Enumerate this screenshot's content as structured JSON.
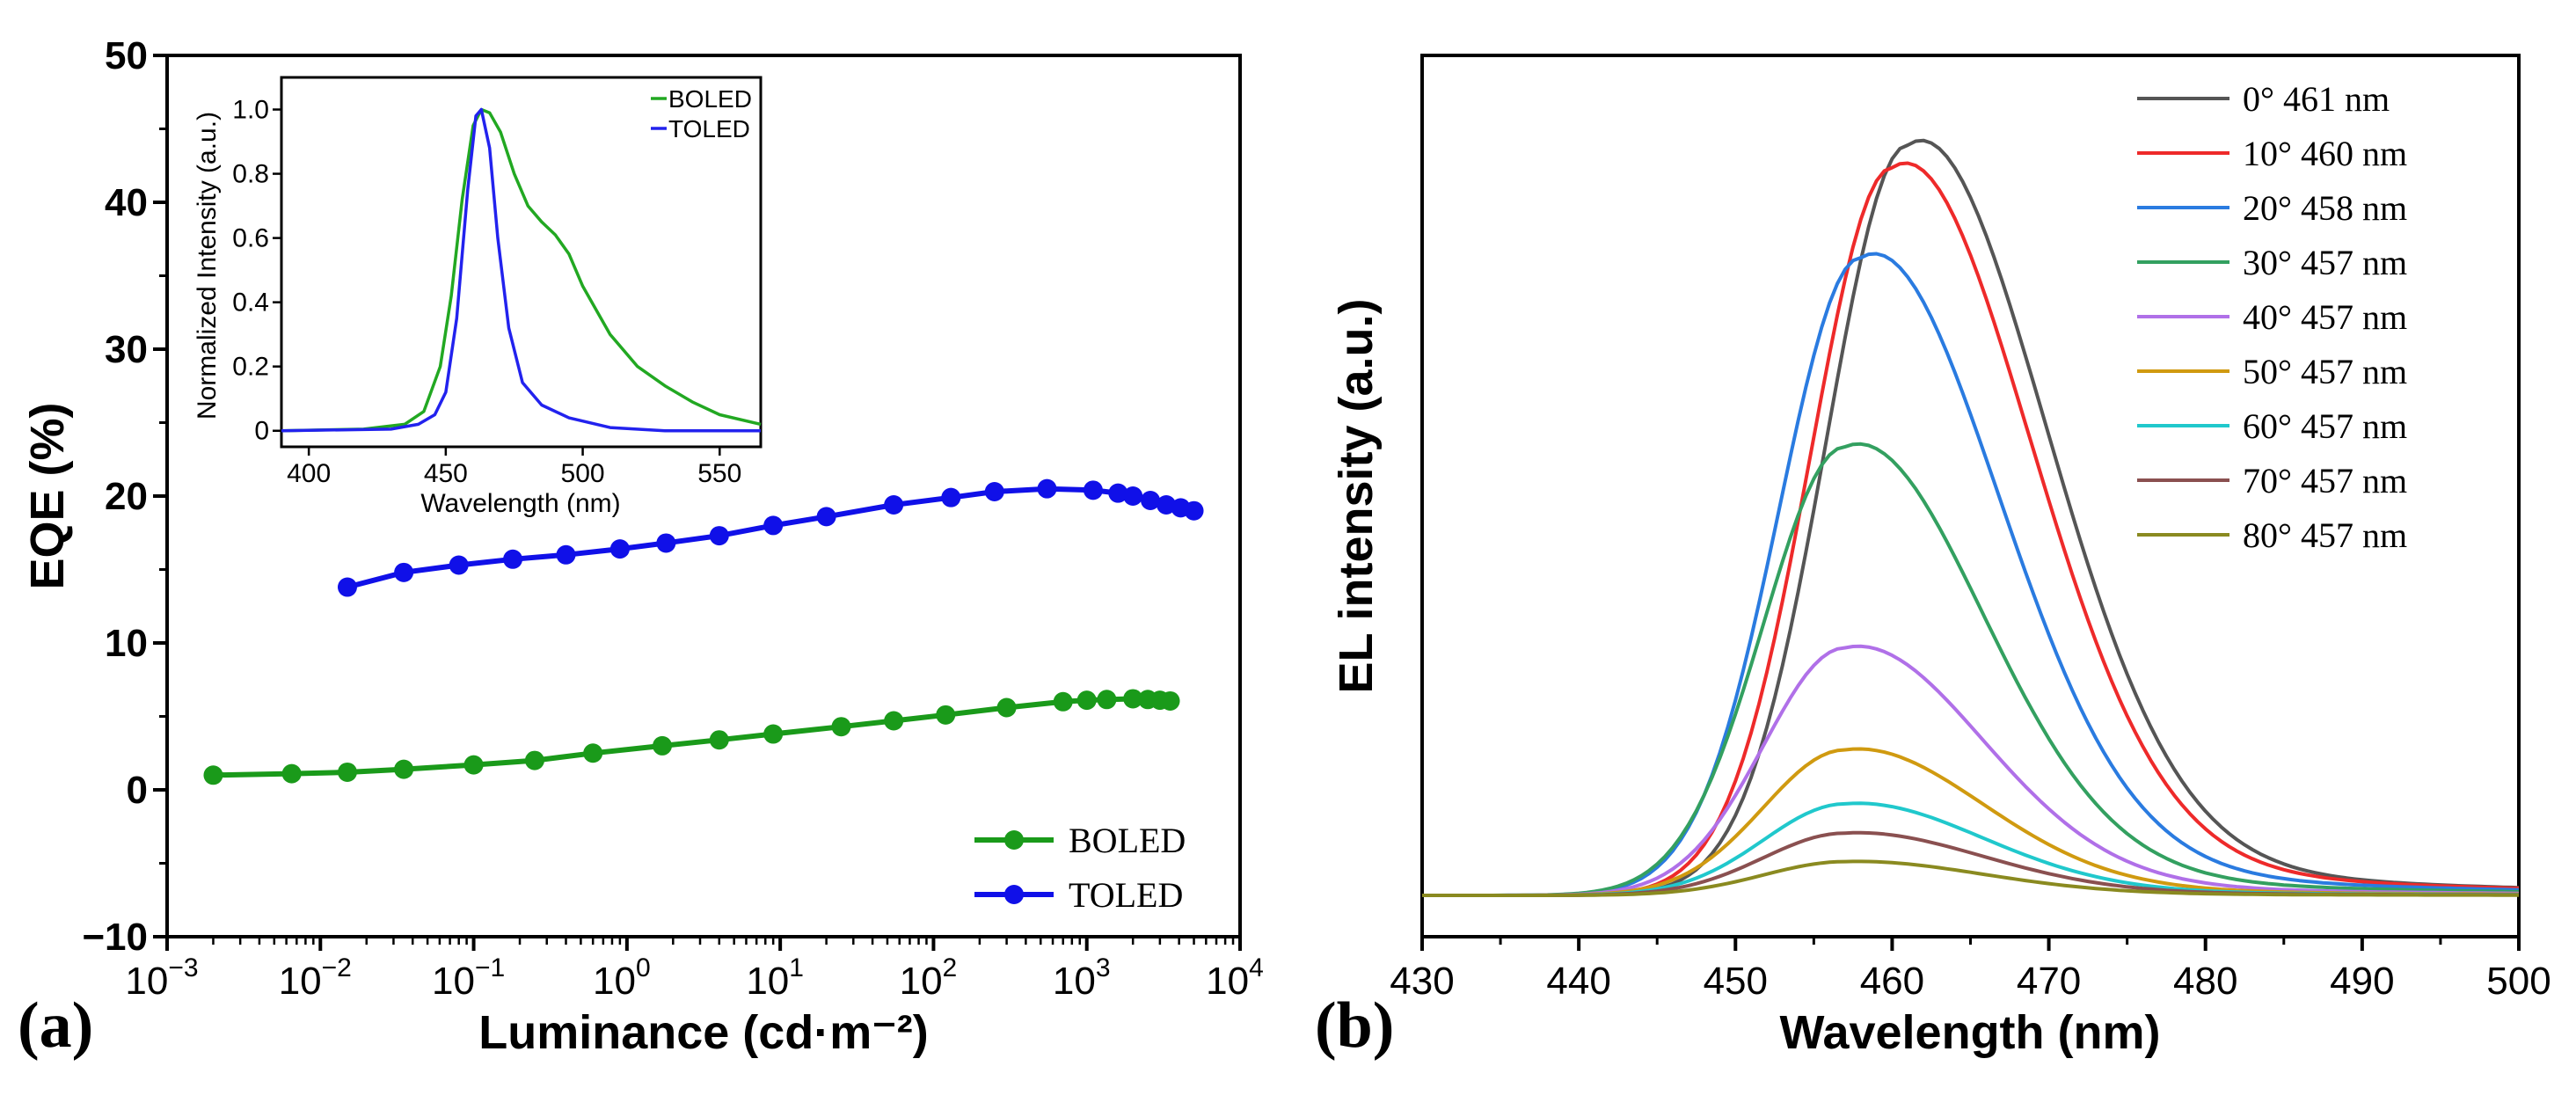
{
  "panel_labels": {
    "a": "(a)",
    "b": "(b)"
  },
  "chart_data": [
    {
      "id": "eqe",
      "type": "scatter",
      "title": "",
      "xlabel": "Luminance (cd·m⁻²)",
      "ylabel": "EQE (%)",
      "xscale": "log",
      "xlim": [
        0.001,
        10000
      ],
      "ylim": [
        -10,
        50
      ],
      "ytick_labels": [
        "−10",
        "0",
        "10",
        "20",
        "30",
        "40",
        "50"
      ],
      "xtick_labels": [
        {
          "base": "10",
          "exp": "-3"
        },
        {
          "base": "10",
          "exp": "-2"
        },
        {
          "base": "10",
          "exp": "-1"
        },
        {
          "base": "10",
          "exp": "0"
        },
        {
          "base": "10",
          "exp": "1"
        },
        {
          "base": "10",
          "exp": "2"
        },
        {
          "base": "10",
          "exp": "3"
        },
        {
          "base": "10",
          "exp": "4"
        }
      ],
      "legend_position": "bottom-right",
      "series": [
        {
          "name": "BOLED",
          "color": "#1a9a1a",
          "x": [
            0.002,
            0.0065,
            0.015,
            0.035,
            0.1,
            0.25,
            0.6,
            1.7,
            4,
            9,
            25,
            55,
            120,
            300,
            700,
            1000,
            1350,
            2000,
            2500,
            3000,
            3500
          ],
          "y": [
            1.0,
            1.1,
            1.2,
            1.4,
            1.7,
            2.0,
            2.5,
            3.0,
            3.4,
            3.8,
            4.3,
            4.7,
            5.1,
            5.6,
            6.0,
            6.1,
            6.15,
            6.2,
            6.15,
            6.1,
            6.05
          ]
        },
        {
          "name": "TOLED",
          "color": "#1010e8",
          "x": [
            0.015,
            0.035,
            0.08,
            0.18,
            0.4,
            0.9,
            1.8,
            4,
            9,
            20,
            55,
            130,
            250,
            550,
            1100,
            1600,
            2000,
            2600,
            3300,
            4100,
            5000
          ],
          "y": [
            13.8,
            14.8,
            15.3,
            15.7,
            16.0,
            16.4,
            16.8,
            17.3,
            18.0,
            18.6,
            19.4,
            19.9,
            20.3,
            20.5,
            20.4,
            20.2,
            20.0,
            19.7,
            19.4,
            19.2,
            19.0
          ]
        }
      ]
    },
    {
      "id": "inset",
      "type": "line",
      "title": "",
      "xlabel": "Wavelength (nm)",
      "ylabel": "Normalized Intensity (a.u.)",
      "xlim": [
        390,
        565
      ],
      "ylim": [
        -0.05,
        1.1
      ],
      "xtick_labels": [
        "400",
        "450",
        "500",
        "550"
      ],
      "ytick_labels": [
        "0",
        "0.2",
        "0.4",
        "0.6",
        "0.8",
        "1.0"
      ],
      "legend_position": "top-right",
      "series": [
        {
          "name": "BOLED",
          "color": "#22a822",
          "x": [
            390,
            420,
            435,
            442,
            448,
            452,
            456,
            460,
            463,
            466,
            470,
            475,
            480,
            485,
            490,
            495,
            500,
            510,
            520,
            530,
            540,
            550,
            565
          ],
          "y": [
            0,
            0.005,
            0.02,
            0.06,
            0.2,
            0.42,
            0.72,
            0.95,
            1.0,
            0.99,
            0.93,
            0.8,
            0.7,
            0.65,
            0.61,
            0.55,
            0.45,
            0.3,
            0.2,
            0.14,
            0.09,
            0.05,
            0.02
          ]
        },
        {
          "name": "TOLED",
          "color": "#2222ee",
          "x": [
            390,
            430,
            440,
            446,
            450,
            454,
            458,
            461,
            463,
            466,
            469,
            473,
            478,
            485,
            495,
            510,
            530,
            565
          ],
          "y": [
            0,
            0.005,
            0.02,
            0.05,
            0.12,
            0.35,
            0.75,
            0.98,
            1.0,
            0.88,
            0.6,
            0.32,
            0.15,
            0.08,
            0.04,
            0.01,
            0.0,
            0.0
          ]
        }
      ]
    },
    {
      "id": "el",
      "type": "line",
      "title": "",
      "xlabel": "Wavelength (nm)",
      "ylabel": "EL intensity (a.u.)",
      "xlim": [
        430,
        500
      ],
      "ylim": [
        0,
        1.0
      ],
      "xtick_labels": [
        "430",
        "440",
        "450",
        "460",
        "470",
        "480",
        "490",
        "500"
      ],
      "legend_position": "top-right",
      "series": [
        {
          "name": "0°   461 nm",
          "color": "#555555",
          "peak_nm": 461,
          "peak": 1.0
        },
        {
          "name": "10° 460 nm",
          "color": "#ee2a2a",
          "peak_nm": 460,
          "peak": 0.97
        },
        {
          "name": "20° 458 nm",
          "color": "#2a7be0",
          "peak_nm": 458,
          "peak": 0.85
        },
        {
          "name": "30° 457 nm",
          "color": "#33a060",
          "peak_nm": 457,
          "peak": 0.598
        },
        {
          "name": "40° 457 nm",
          "color": "#b070e8",
          "peak_nm": 457,
          "peak": 0.33
        },
        {
          "name": "50° 457 nm",
          "color": "#d09a10",
          "peak_nm": 457,
          "peak": 0.194
        },
        {
          "name": "60° 457 nm",
          "color": "#20c8cc",
          "peak_nm": 457,
          "peak": 0.122
        },
        {
          "name": "70° 457 nm",
          "color": "#8a5050",
          "peak_nm": 457,
          "peak": 0.083
        },
        {
          "name": "80° 457 nm",
          "color": "#8a8a20",
          "peak_nm": 457,
          "peak": 0.045
        }
      ]
    }
  ]
}
